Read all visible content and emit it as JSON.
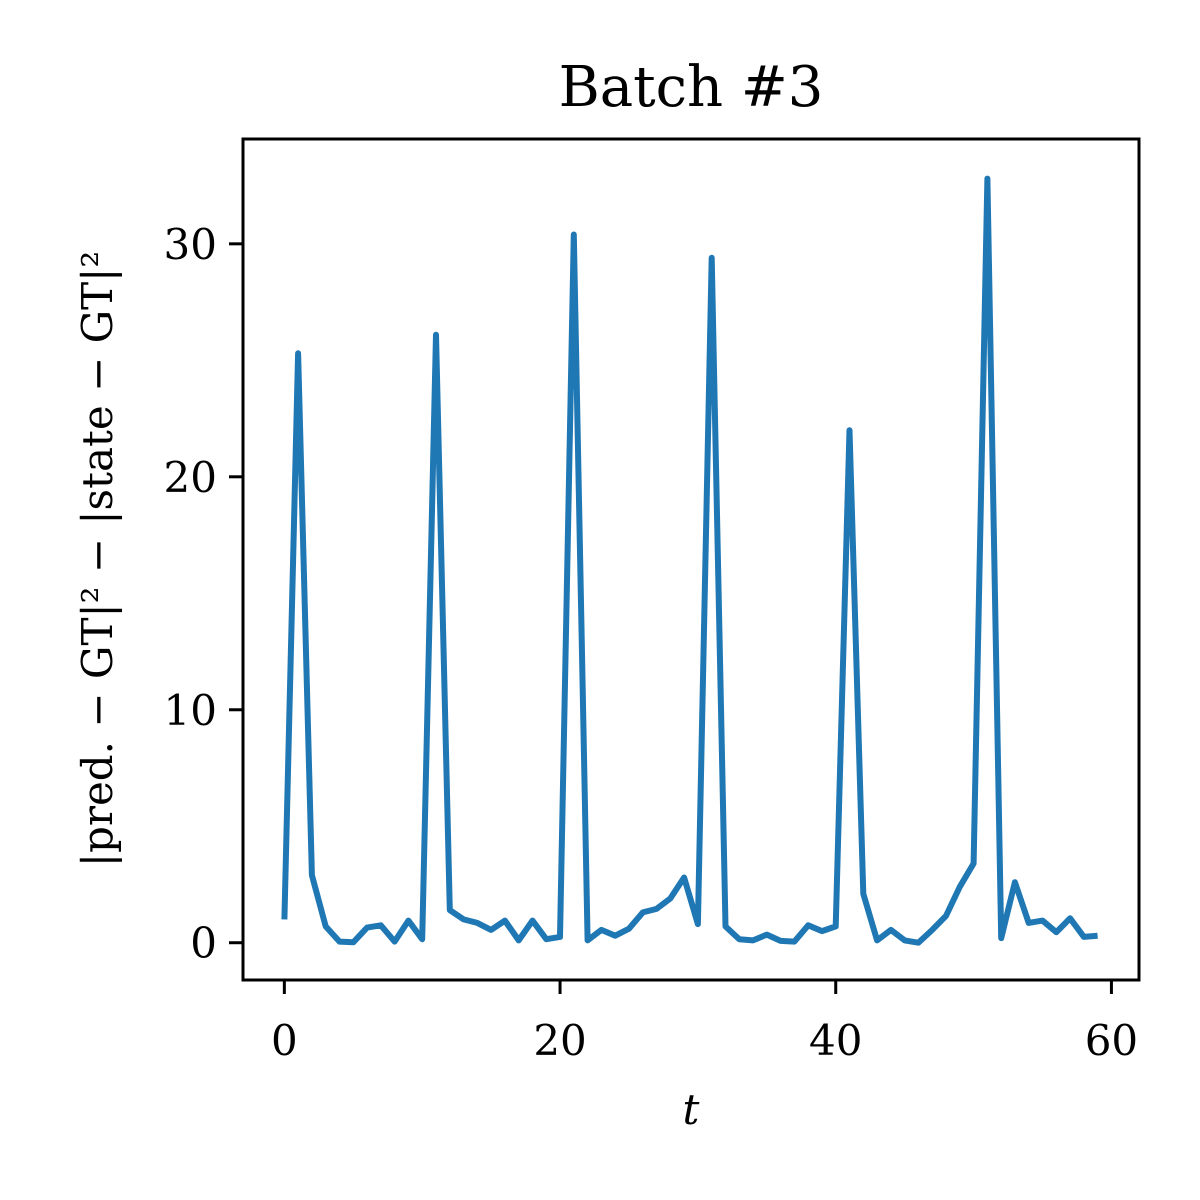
{
  "chart_data": {
    "type": "line",
    "title": "Batch #3",
    "xlabel": "t",
    "ylabel": "|pred. − GT|² − |state − GT|²",
    "xlim": [
      -3,
      62
    ],
    "ylim": [
      -1.6,
      34.5
    ],
    "xticks": [
      0,
      20,
      40,
      60
    ],
    "yticks": [
      0,
      10,
      20,
      30
    ],
    "grid": false,
    "colors": {
      "line": "#1f77b4",
      "axes": "#000000"
    },
    "series": [
      {
        "x": [
          0,
          1,
          2,
          3,
          4,
          5,
          6,
          7,
          8,
          9,
          10,
          11,
          12,
          13,
          14,
          15,
          16,
          17,
          18,
          19,
          20,
          21,
          22,
          23,
          24,
          25,
          26,
          27,
          28,
          29,
          30,
          31,
          32,
          33,
          34,
          35,
          36,
          37,
          38,
          39,
          40,
          41,
          42,
          43,
          44,
          45,
          46,
          47,
          48,
          49,
          50,
          51,
          52,
          53,
          54,
          55,
          56,
          57,
          58,
          59
        ],
        "y": [
          1.0,
          25.3,
          2.9,
          0.7,
          0.05,
          0.02,
          0.65,
          0.75,
          0.05,
          0.95,
          0.15,
          26.1,
          1.4,
          1.0,
          0.85,
          0.55,
          0.95,
          0.1,
          0.95,
          0.15,
          0.25,
          30.4,
          0.1,
          0.55,
          0.3,
          0.6,
          1.3,
          1.45,
          1.9,
          2.8,
          0.8,
          29.4,
          0.7,
          0.15,
          0.1,
          0.35,
          0.08,
          0.05,
          0.75,
          0.5,
          0.7,
          22.0,
          2.1,
          0.1,
          0.55,
          0.1,
          0.0,
          0.55,
          1.15,
          2.4,
          3.4,
          32.8,
          0.2,
          2.6,
          0.85,
          0.95,
          0.45,
          1.05,
          0.25,
          0.3
        ]
      }
    ]
  }
}
